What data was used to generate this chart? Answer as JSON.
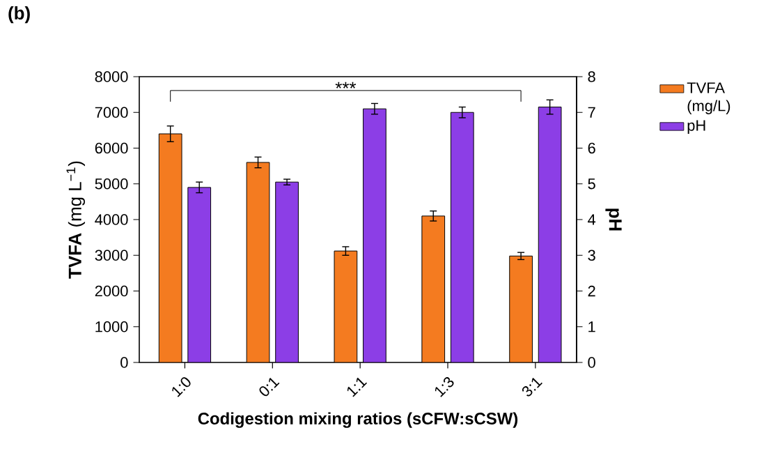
{
  "chart_data": {
    "type": "bar",
    "title": "(b)",
    "xlabel": "Codigestion mixing ratios (sCFW:sCSW)",
    "ylabel": "**TVFA** (mg L$^{−1}$)",
    "y2label": "pH",
    "categories": [
      "1:0",
      "0:1",
      "1:1",
      "1:3",
      "3:1"
    ],
    "series": [
      {
        "name": "TVFA (mg/L)",
        "color": "#f47b20",
        "values": [
          6400,
          5600,
          3120,
          4100,
          2980
        ],
        "errors": [
          220,
          150,
          120,
          140,
          100
        ]
      },
      {
        "name": "pH",
        "color": "#8c3ee6",
        "axis": "y2",
        "values": [
          4.9,
          5.05,
          7.1,
          7.0,
          7.15
        ],
        "errors": [
          0.15,
          0.08,
          0.15,
          0.15,
          0.2
        ]
      }
    ],
    "ylim": [
      0,
      8000
    ],
    "yticks": [
      0,
      1000,
      2000,
      3000,
      4000,
      5000,
      6000,
      7000,
      8000
    ],
    "y2lim": [
      0,
      8
    ],
    "y2ticks": [
      0,
      1,
      2,
      3,
      4,
      5,
      6,
      7,
      8
    ],
    "legend": "right",
    "annotations": [
      "***"
    ]
  }
}
